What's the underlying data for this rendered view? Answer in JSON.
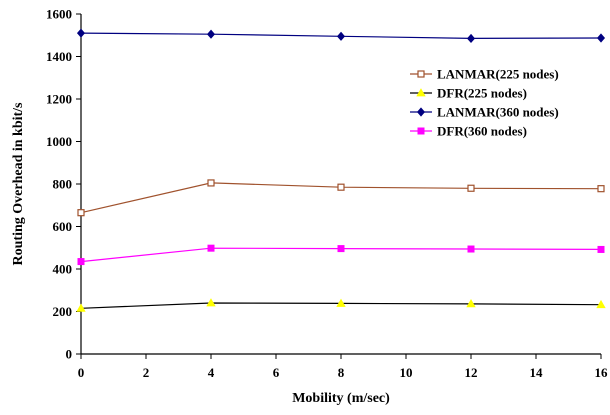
{
  "chart_data": {
    "type": "line",
    "xlabel": "Mobility (m/sec)",
    "ylabel": "Routing Overhead in kbit/s",
    "xlim": [
      0,
      16
    ],
    "ylim": [
      0,
      1600
    ],
    "xticks": [
      "0",
      "2",
      "4",
      "6",
      "8",
      "10",
      "12",
      "14",
      "16"
    ],
    "yticks": [
      "0",
      "200",
      "400",
      "600",
      "800",
      "1000",
      "1200",
      "1400",
      "1600"
    ],
    "grid": false,
    "legend_position": "right-upper",
    "series": [
      {
        "name": "LANMAR(225 nodes)",
        "color": "#a0522d",
        "marker": "square-open",
        "x": [
          0,
          4,
          8,
          12,
          16
        ],
        "y": [
          665,
          805,
          785,
          780,
          778
        ]
      },
      {
        "name": "DFR(225 nodes)",
        "color": "#ffff00",
        "line_color": "#000000",
        "marker": "triangle",
        "x": [
          0,
          4,
          8,
          12,
          16
        ],
        "y": [
          215,
          240,
          238,
          236,
          232
        ]
      },
      {
        "name": "LANMAR(360 nodes)",
        "color": "#000080",
        "marker": "diamond",
        "x": [
          0,
          4,
          8,
          12,
          16
        ],
        "y": [
          1510,
          1505,
          1495,
          1485,
          1487
        ]
      },
      {
        "name": "DFR(360 nodes)",
        "color": "#ff00ff",
        "marker": "square",
        "x": [
          0,
          4,
          8,
          12,
          16
        ],
        "y": [
          435,
          498,
          496,
          494,
          492
        ]
      }
    ]
  }
}
